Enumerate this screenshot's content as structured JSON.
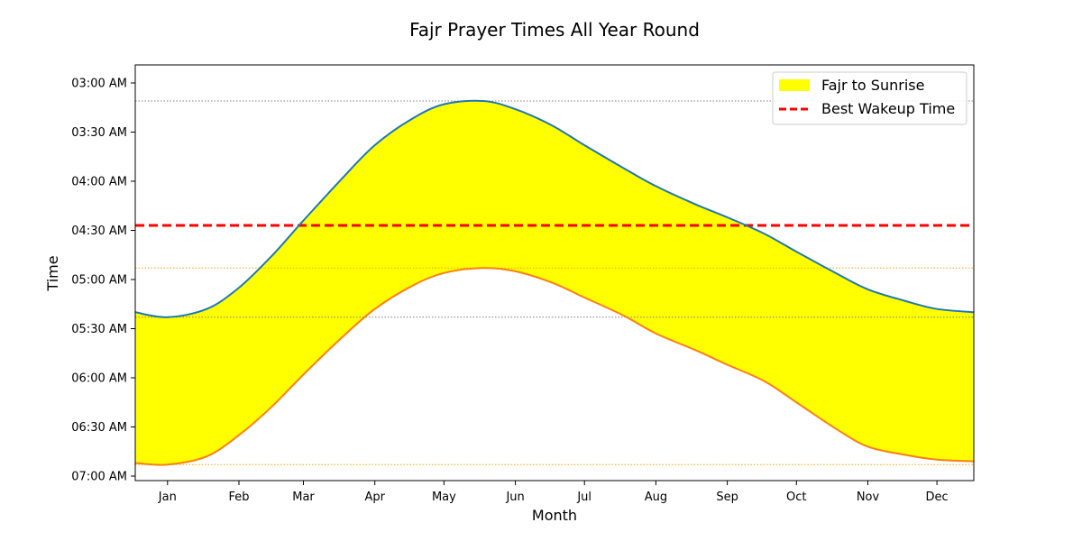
{
  "chart_data": {
    "type": "area",
    "title": "Fajr Prayer Times All Year Round",
    "xlabel": "Month",
    "ylabel": "Time",
    "x_ticks": [
      "Jan",
      "Feb",
      "Mar",
      "Apr",
      "May",
      "Jun",
      "Jul",
      "Aug",
      "Sep",
      "Oct",
      "Nov",
      "Dec"
    ],
    "y_ticks": [
      "03:00 AM",
      "03:30 AM",
      "04:00 AM",
      "04:30 AM",
      "05:00 AM",
      "05:30 AM",
      "06:00 AM",
      "06:30 AM",
      "07:00 AM"
    ],
    "y_axis": "time of day, earliest at top",
    "ylim": [
      "03:00 AM",
      "07:00 AM"
    ],
    "xlim": [
      "Jan 1",
      "Dec 31"
    ],
    "grid": false,
    "legend_position": "top-right",
    "series": [
      {
        "name": "",
        "role": "upper boundary (Fajr)",
        "color": "#1f77b4",
        "points": [
          [
            "Jan 1",
            "05:20 AM"
          ],
          [
            "Jan 15",
            "05:23 AM"
          ],
          [
            "Feb 1",
            "05:18 AM"
          ],
          [
            "Feb 15",
            "05:05 AM"
          ],
          [
            "Mar 1",
            "04:46 AM"
          ],
          [
            "Mar 15",
            "04:24 AM"
          ],
          [
            "Apr 1",
            "03:58 AM"
          ],
          [
            "Apr 15",
            "03:38 AM"
          ],
          [
            "May 1",
            "03:22 AM"
          ],
          [
            "May 15",
            "03:13 AM"
          ],
          [
            "Jun 1",
            "03:11 AM"
          ],
          [
            "Jun 15",
            "03:16 AM"
          ],
          [
            "Jul 1",
            "03:26 AM"
          ],
          [
            "Jul 15",
            "03:38 AM"
          ],
          [
            "Aug 1",
            "03:52 AM"
          ],
          [
            "Aug 15",
            "04:03 AM"
          ],
          [
            "Sep 1",
            "04:14 AM"
          ],
          [
            "Sep 15",
            "04:22 AM"
          ],
          [
            "Oct 1",
            "04:32 AM"
          ],
          [
            "Oct 15",
            "04:43 AM"
          ],
          [
            "Nov 1",
            "04:56 AM"
          ],
          [
            "Nov 15",
            "05:06 AM"
          ],
          [
            "Dec 1",
            "05:13 AM"
          ],
          [
            "Dec 15",
            "05:18 AM"
          ],
          [
            "Dec 31",
            "05:20 AM"
          ]
        ]
      },
      {
        "name": "",
        "role": "lower boundary (Sunrise)",
        "color": "#ff7f0e",
        "points": [
          [
            "Jan 1",
            "06:52 AM"
          ],
          [
            "Jan 15",
            "06:53 AM"
          ],
          [
            "Feb 1",
            "06:48 AM"
          ],
          [
            "Feb 15",
            "06:35 AM"
          ],
          [
            "Mar 1",
            "06:18 AM"
          ],
          [
            "Mar 15",
            "05:58 AM"
          ],
          [
            "Apr 1",
            "05:35 AM"
          ],
          [
            "Apr 15",
            "05:18 AM"
          ],
          [
            "May 1",
            "05:04 AM"
          ],
          [
            "May 15",
            "04:56 AM"
          ],
          [
            "Jun 1",
            "04:53 AM"
          ],
          [
            "Jun 15",
            "04:55 AM"
          ],
          [
            "Jul 1",
            "05:02 AM"
          ],
          [
            "Jul 15",
            "05:11 AM"
          ],
          [
            "Aug 1",
            "05:22 AM"
          ],
          [
            "Aug 15",
            "05:33 AM"
          ],
          [
            "Sep 1",
            "05:43 AM"
          ],
          [
            "Sep 15",
            "05:52 AM"
          ],
          [
            "Oct 1",
            "06:02 AM"
          ],
          [
            "Oct 15",
            "06:15 AM"
          ],
          [
            "Nov 1",
            "06:31 AM"
          ],
          [
            "Nov 15",
            "06:42 AM"
          ],
          [
            "Dec 1",
            "06:47 AM"
          ],
          [
            "Dec 15",
            "06:50 AM"
          ],
          [
            "Dec 31",
            "06:51 AM"
          ]
        ]
      }
    ],
    "fill": {
      "name": "Fajr to Sunrise",
      "color": "#ffff00",
      "between": "upper and lower boundary"
    },
    "reference_lines": [
      {
        "name": "Best Wakeup Time",
        "value": "04:27 AM",
        "color": "#ff0000",
        "style": "dashed"
      },
      {
        "name": "",
        "value": "03:11 AM",
        "color": "#808080",
        "style": "dotted"
      },
      {
        "name": "",
        "value": "05:23 AM",
        "color": "#808080",
        "style": "dotted"
      },
      {
        "name": "",
        "value": "04:53 AM",
        "color": "#ffa500",
        "style": "dotted"
      },
      {
        "name": "",
        "value": "06:53 AM",
        "color": "#ffa500",
        "style": "dotted"
      }
    ],
    "legend": [
      {
        "label": "Fajr to Sunrise",
        "symbol": "filled-rectangle",
        "color": "#ffff00"
      },
      {
        "label": "Best Wakeup Time",
        "symbol": "dashed-line",
        "color": "#ff0000"
      }
    ]
  }
}
